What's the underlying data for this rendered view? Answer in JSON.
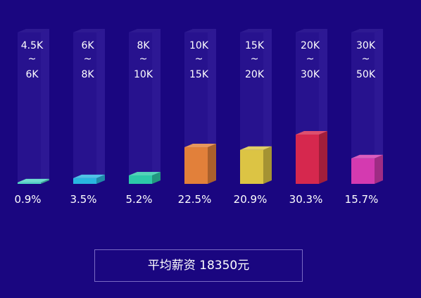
{
  "chart_data": {
    "type": "bar",
    "categories": [
      {
        "from": "4.5K",
        "sep": "~",
        "to": "6K"
      },
      {
        "from": "6K",
        "sep": "~",
        "to": "8K"
      },
      {
        "from": "8K",
        "sep": "~",
        "to": "10K"
      },
      {
        "from": "10K",
        "sep": "~",
        "to": "15K"
      },
      {
        "from": "15K",
        "sep": "~",
        "to": "20K"
      },
      {
        "from": "20K",
        "sep": "~",
        "to": "30K"
      },
      {
        "from": "30K",
        "sep": "~",
        "to": "50K"
      }
    ],
    "values": [
      0.9,
      3.5,
      5.2,
      22.5,
      20.9,
      30.3,
      15.7
    ],
    "value_labels": [
      "0.9%",
      "3.5%",
      "5.2%",
      "22.5%",
      "20.9%",
      "30.3%",
      "15.7%"
    ],
    "colors": [
      "#4fd6c4",
      "#29b6e0",
      "#2dc9a9",
      "#e2803a",
      "#dcc444",
      "#d6284e",
      "#d43ab0"
    ],
    "unit": "%",
    "grid": false
  },
  "summary": {
    "label": "平均薪资",
    "value": "18350",
    "unit": "元"
  }
}
